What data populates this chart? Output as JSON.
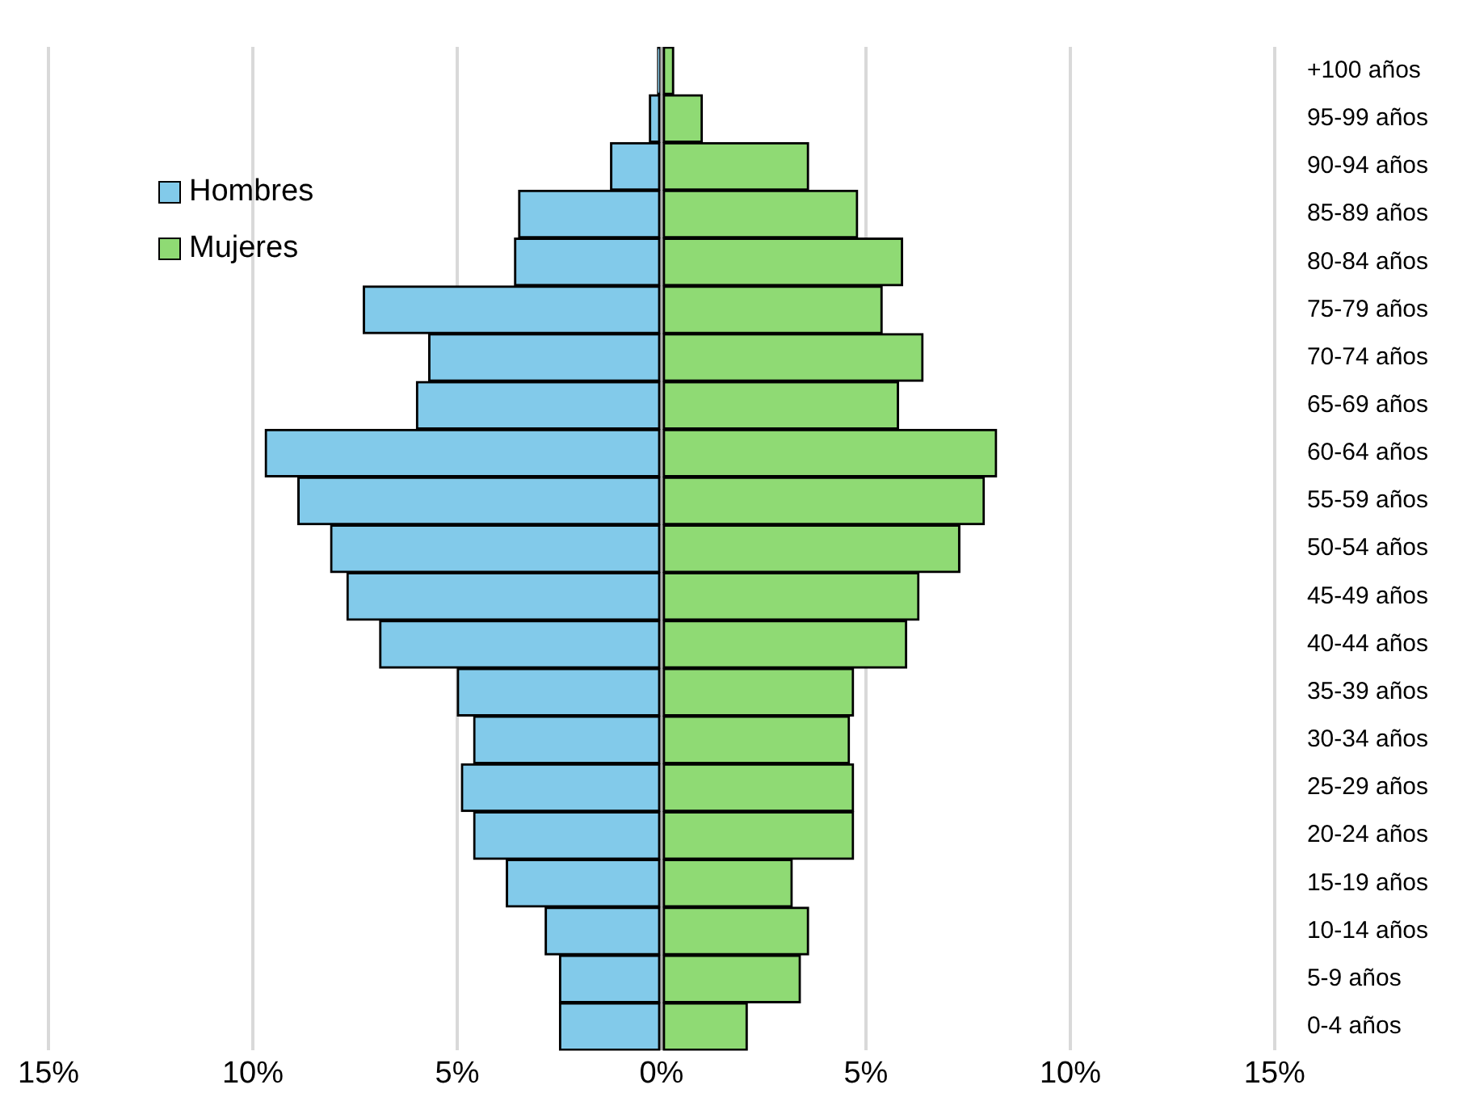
{
  "chart_data": {
    "type": "bar",
    "orientation": "horizontal",
    "stacked": true,
    "categories": [
      "+100 años",
      "95-99 años",
      "90-94 años",
      "85-89 años",
      "80-84 años",
      "75-79 años",
      "70-74 años",
      "65-69 años",
      "60-64 años",
      "55-59 años",
      "50-54 años",
      "45-49 años",
      "40-44 años",
      "35-39 años",
      "30-34 años",
      "25-29 años",
      "20-24 años",
      "15-19 años",
      "10-14 años",
      "5-9 años",
      "0-4 años"
    ],
    "series": [
      {
        "name": "Hombres",
        "color": "#82caea",
        "values": [
          -0.1,
          -0.3,
          -1.25,
          -3.5,
          -3.6,
          -7.3,
          -5.7,
          -6.0,
          -9.7,
          -8.9,
          -8.1,
          -7.7,
          -6.9,
          -5.0,
          -4.6,
          -4.9,
          -4.6,
          -3.8,
          -2.85,
          -2.5,
          -2.5
        ]
      },
      {
        "name": "Mujeres",
        "color": "#8fda74",
        "values": [
          0.3,
          1.0,
          3.6,
          4.8,
          5.9,
          5.4,
          6.4,
          5.8,
          8.2,
          7.9,
          7.3,
          6.3,
          6.0,
          4.7,
          4.6,
          4.7,
          4.7,
          3.2,
          3.6,
          3.4,
          2.1
        ]
      }
    ],
    "xlim": [
      -15,
      15
    ],
    "xticks": [
      {
        "value": -15,
        "label": "15%"
      },
      {
        "value": -10,
        "label": "10%"
      },
      {
        "value": -5,
        "label": "5%"
      },
      {
        "value": 0,
        "label": "0%"
      },
      {
        "value": 5,
        "label": "5%"
      },
      {
        "value": 10,
        "label": "10%"
      },
      {
        "value": 15,
        "label": "15%"
      }
    ],
    "grid": "x",
    "legend": "top left"
  }
}
